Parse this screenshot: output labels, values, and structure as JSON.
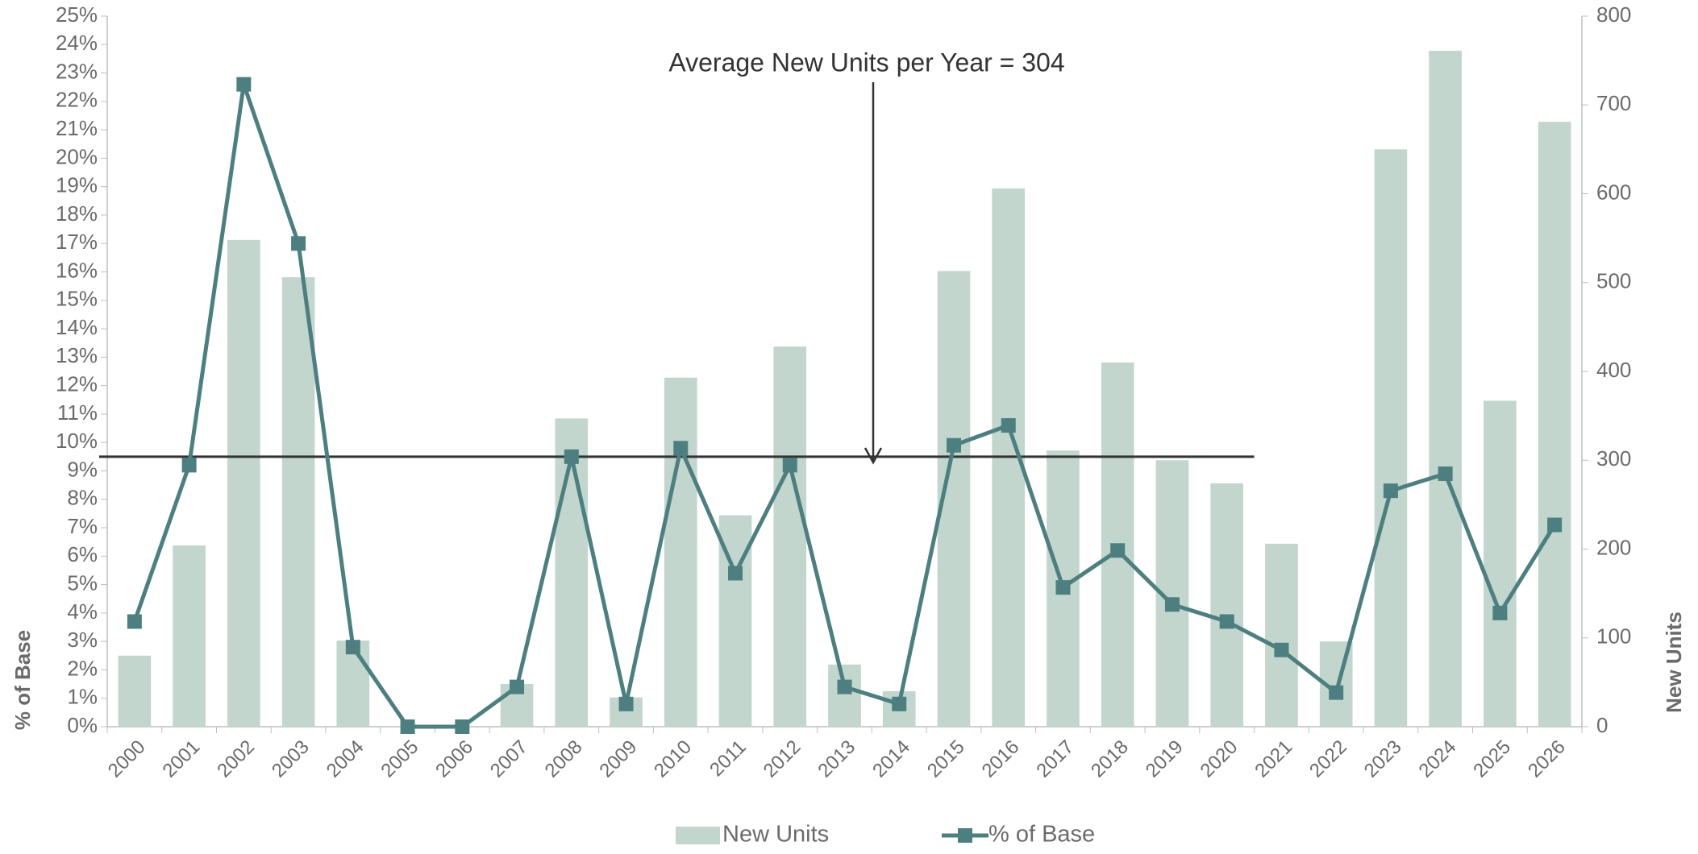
{
  "chart_data": {
    "type": "bar_line",
    "annotation": "Average New Units per Year = 304",
    "average": 304,
    "ylabel": "% of Base",
    "y2label": "New Units",
    "categories": [
      "2000",
      "2001",
      "2002",
      "2003",
      "2004",
      "2005",
      "2006",
      "2007",
      "2008",
      "2009",
      "2010",
      "2011",
      "2012",
      "2013",
      "2014",
      "2015",
      "2016",
      "2017",
      "2018",
      "2019",
      "2020",
      "2021",
      "2022",
      "2023",
      "2024",
      "2025",
      "2026"
    ],
    "series": [
      {
        "name": "New Units",
        "type": "bar",
        "axis": "y2",
        "color": "#c2d6cd",
        "values": [
          80,
          204,
          548,
          506,
          97,
          0,
          0,
          48,
          347,
          33,
          393,
          238,
          428,
          70,
          40,
          513,
          606,
          311,
          410,
          300,
          274,
          206,
          96,
          650,
          761,
          367,
          681
        ]
      },
      {
        "name": "% of Base",
        "type": "line",
        "axis": "y",
        "color": "#4e7f80",
        "values": [
          3.7,
          9.2,
          22.6,
          17.0,
          2.8,
          0,
          0,
          1.4,
          9.5,
          0.8,
          9.8,
          5.4,
          9.2,
          1.4,
          0.8,
          9.9,
          10.6,
          4.9,
          6.2,
          4.3,
          3.7,
          2.7,
          1.2,
          8.3,
          8.9,
          4.0,
          7.1
        ]
      }
    ],
    "ylim": [
      0,
      25
    ],
    "yticks": [
      {
        "value": 0,
        "label": "0%"
      },
      {
        "value": 1,
        "label": "1%"
      },
      {
        "value": 2,
        "label": "2%"
      },
      {
        "value": 3,
        "label": "3%"
      },
      {
        "value": 4,
        "label": "4%"
      },
      {
        "value": 5,
        "label": "5%"
      },
      {
        "value": 6,
        "label": "6%"
      },
      {
        "value": 7,
        "label": "7%"
      },
      {
        "value": 8,
        "label": "8%"
      },
      {
        "value": 9,
        "label": "9%"
      },
      {
        "value": 10,
        "label": "10%"
      },
      {
        "value": 11,
        "label": "11%"
      },
      {
        "value": 12,
        "label": "12%"
      },
      {
        "value": 13,
        "label": "13%"
      },
      {
        "value": 14,
        "label": "14%"
      },
      {
        "value": 15,
        "label": "15%"
      },
      {
        "value": 16,
        "label": "16%"
      },
      {
        "value": 17,
        "label": "17%"
      },
      {
        "value": 18,
        "label": "18%"
      },
      {
        "value": 19,
        "label": "19%"
      },
      {
        "value": 20,
        "label": "20%"
      },
      {
        "value": 21,
        "label": "21%"
      },
      {
        "value": 22,
        "label": "22%"
      },
      {
        "value": 23,
        "label": "23%"
      },
      {
        "value": 24,
        "label": "24%"
      },
      {
        "value": 25,
        "label": "25%"
      }
    ],
    "y2lim": [
      0,
      800
    ],
    "y2ticks": [
      0,
      100,
      200,
      300,
      400,
      500,
      600,
      700,
      800
    ],
    "legend": "bottom"
  }
}
